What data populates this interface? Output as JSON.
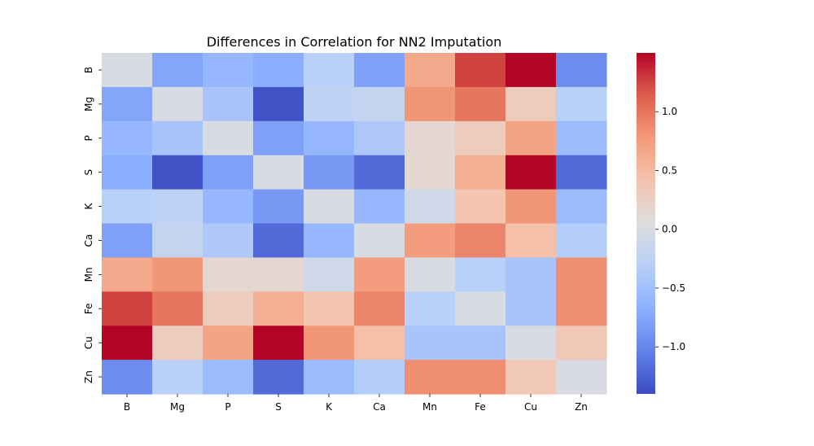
{
  "chart_data": {
    "type": "heatmap",
    "title": "Differences in Correlation for NN2 Imputation",
    "xlabel": "",
    "ylabel": "",
    "x_categories": [
      "B",
      "Mg",
      "P",
      "S",
      "K",
      "Ca",
      "Mn",
      "Fe",
      "Cu",
      "Zn"
    ],
    "y_categories": [
      "B",
      "Mg",
      "P",
      "S",
      "K",
      "Ca",
      "Mn",
      "Fe",
      "Cu",
      "Zn"
    ],
    "values": [
      [
        0.0,
        -0.75,
        -0.6,
        -0.7,
        -0.3,
        -0.8,
        0.65,
        1.25,
        1.5,
        -0.95
      ],
      [
        -0.75,
        0.0,
        -0.45,
        -1.35,
        -0.25,
        -0.2,
        0.8,
        1.0,
        0.3,
        -0.3
      ],
      [
        -0.6,
        -0.45,
        0.0,
        -0.8,
        -0.6,
        -0.4,
        0.15,
        0.3,
        0.7,
        -0.55
      ],
      [
        -0.7,
        -1.35,
        -0.8,
        0.0,
        -0.85,
        -1.2,
        0.15,
        0.6,
        1.5,
        -1.2
      ],
      [
        -0.3,
        -0.25,
        -0.6,
        -0.85,
        0.0,
        -0.6,
        -0.1,
        0.4,
        0.8,
        -0.55
      ],
      [
        -0.8,
        -0.2,
        -0.4,
        -1.2,
        -0.6,
        0.0,
        0.75,
        0.9,
        0.45,
        -0.35
      ],
      [
        0.65,
        0.8,
        0.15,
        0.15,
        -0.1,
        0.75,
        0.0,
        -0.3,
        -0.45,
        0.85
      ],
      [
        1.25,
        1.0,
        0.3,
        0.6,
        0.4,
        0.9,
        -0.3,
        0.0,
        -0.45,
        0.85
      ],
      [
        1.5,
        0.3,
        0.7,
        1.5,
        0.8,
        0.45,
        -0.45,
        -0.45,
        0.0,
        0.35
      ],
      [
        -0.95,
        -0.3,
        -0.55,
        -1.2,
        -0.55,
        -0.35,
        0.85,
        0.85,
        0.35,
        0.0
      ]
    ],
    "colormap": "coolwarm",
    "vmin": -1.4,
    "vmax": 1.5,
    "colorbar": {
      "ticks": [
        1.0,
        0.5,
        0.0,
        -0.5,
        -1.0
      ],
      "tick_labels": [
        "1.0",
        "0.5",
        "0.0",
        "−0.5",
        "−1.0"
      ]
    }
  }
}
